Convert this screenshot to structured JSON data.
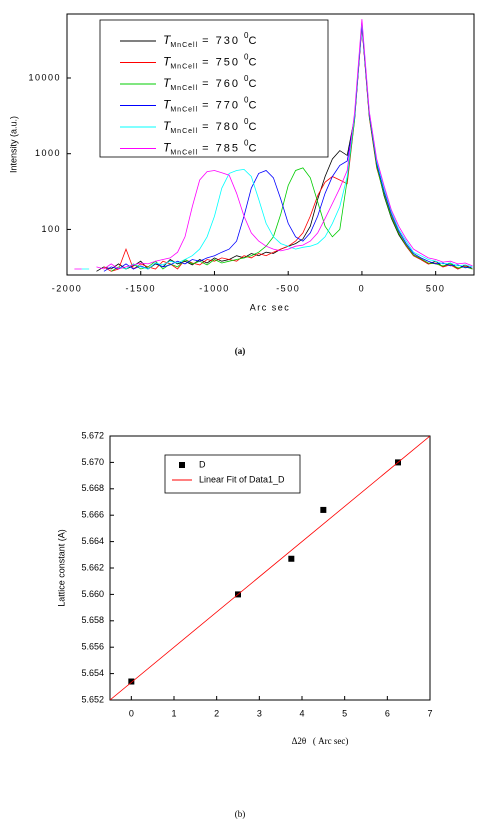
{
  "chart_data": [
    {
      "type": "line",
      "log_y": true,
      "caption": "(a)",
      "x_label": "Arc sec",
      "y_label": "Intensity (a.u.)",
      "xlim": [
        -2000,
        760
      ],
      "ylim": [
        25,
        70000
      ],
      "xticks": [
        -2000,
        -1500,
        -1000,
        -500,
        0,
        500
      ],
      "yticks": [
        100,
        1000,
        10000
      ],
      "x": [
        -2000,
        -1950,
        -1900,
        -1850,
        -1800,
        -1750,
        -1700,
        -1650,
        -1600,
        -1550,
        -1500,
        -1450,
        -1400,
        -1350,
        -1300,
        -1250,
        -1200,
        -1150,
        -1100,
        -1050,
        -1000,
        -950,
        -900,
        -850,
        -800,
        -750,
        -700,
        -650,
        -600,
        -550,
        -500,
        -450,
        -400,
        -350,
        -300,
        -250,
        -200,
        -150,
        -100,
        -50,
        0,
        50,
        100,
        150,
        200,
        250,
        300,
        350,
        400,
        450,
        500,
        550,
        600,
        650,
        700,
        750
      ],
      "series": [
        {
          "name": {
            "symbol": "T",
            "subscript": "MnCell",
            "text": "= 730",
            "superscript": "0",
            "unit": "C"
          },
          "color": "#000000",
          "values": [
            null,
            null,
            30,
            null,
            28,
            32,
            30,
            35,
            30,
            33,
            38,
            30,
            35,
            32,
            40,
            35,
            38,
            34,
            40,
            36,
            42,
            38,
            40,
            45,
            42,
            48,
            45,
            50,
            48,
            55,
            60,
            65,
            75,
            110,
            250,
            500,
            850,
            1100,
            950,
            3000,
            50000,
            3200,
            700,
            280,
            140,
            85,
            60,
            45,
            40,
            35,
            38,
            32,
            36,
            30,
            34,
            30
          ]
        },
        {
          "name": {
            "symbol": "T",
            "subscript": "MnCell",
            "text": "= 750",
            "superscript": "0",
            "unit": "C"
          },
          "color": "#ff0000",
          "values": [
            null,
            null,
            null,
            30,
            null,
            32,
            28,
            30,
            55,
            30,
            35,
            32,
            30,
            38,
            35,
            30,
            40,
            36,
            34,
            40,
            38,
            42,
            40,
            38,
            45,
            42,
            48,
            45,
            50,
            55,
            60,
            70,
            90,
            150,
            280,
            420,
            500,
            450,
            400,
            2800,
            48000,
            3000,
            650,
            300,
            150,
            90,
            60,
            45,
            40,
            35,
            36,
            32,
            34,
            30,
            33,
            30
          ]
        },
        {
          "name": {
            "symbol": "T",
            "subscript": "MnCell",
            "text": "= 760",
            "superscript": "0",
            "unit": "C"
          },
          "color": "#00cc00",
          "values": [
            null,
            null,
            null,
            null,
            30,
            null,
            28,
            32,
            30,
            35,
            30,
            32,
            38,
            30,
            35,
            32,
            40,
            35,
            38,
            34,
            40,
            36,
            38,
            40,
            42,
            45,
            50,
            60,
            80,
            160,
            380,
            600,
            650,
            480,
            230,
            110,
            80,
            100,
            450,
            2800,
            52000,
            3100,
            680,
            290,
            145,
            88,
            62,
            46,
            41,
            36,
            35,
            33,
            35,
            31,
            32,
            30
          ]
        },
        {
          "name": {
            "symbol": "T",
            "subscript": "MnCell",
            "text": "= 770",
            "superscript": "0",
            "unit": "C"
          },
          "color": "#0000ff",
          "values": [
            null,
            null,
            null,
            30,
            null,
            28,
            32,
            30,
            35,
            30,
            33,
            30,
            36,
            32,
            34,
            38,
            35,
            40,
            38,
            42,
            45,
            50,
            55,
            70,
            150,
            350,
            550,
            600,
            480,
            250,
            120,
            80,
            70,
            90,
            150,
            300,
            500,
            700,
            800,
            3000,
            50000,
            3300,
            750,
            320,
            160,
            95,
            65,
            48,
            42,
            38,
            35,
            36,
            33,
            34,
            31,
            32
          ]
        },
        {
          "name": {
            "symbol": "T",
            "subscript": "MnCell",
            "text": "= 780",
            "superscript": "0",
            "unit": "C"
          },
          "color": "#00ffff",
          "values": [
            null,
            null,
            30,
            30,
            null,
            30,
            null,
            32,
            30,
            35,
            32,
            30,
            36,
            34,
            38,
            36,
            40,
            45,
            55,
            80,
            150,
            350,
            550,
            600,
            620,
            500,
            250,
            120,
            80,
            65,
            60,
            55,
            58,
            60,
            65,
            80,
            120,
            200,
            500,
            3200,
            55000,
            3500,
            800,
            350,
            170,
            100,
            70,
            50,
            45,
            40,
            38,
            35,
            36,
            33,
            34,
            32
          ]
        },
        {
          "name": {
            "symbol": "T",
            "subscript": "MnCell",
            "text": "= 785",
            "superscript": "0",
            "unit": "C"
          },
          "color": "#ff00ff",
          "values": [
            null,
            30,
            30,
            null,
            32,
            30,
            35,
            30,
            32,
            34,
            36,
            35,
            38,
            40,
            42,
            50,
            80,
            200,
            450,
            580,
            600,
            560,
            520,
            300,
            150,
            90,
            70,
            60,
            55,
            52,
            55,
            60,
            62,
            70,
            90,
            140,
            220,
            350,
            600,
            3500,
            60000,
            3600,
            850,
            380,
            180,
            110,
            75,
            55,
            48,
            42,
            40,
            37,
            38,
            35,
            36,
            33
          ]
        }
      ]
    },
    {
      "type": "scatter",
      "caption": "(b)",
      "x_label": "Δ2θ   ( Arc sec)",
      "y_label": "Lattice constant (A)",
      "xlim": [
        -0.5,
        7
      ],
      "ylim": [
        5.652,
        5.672
      ],
      "xticks": [
        0,
        1,
        2,
        3,
        4,
        5,
        6,
        7
      ],
      "yticks": [
        5.652,
        5.654,
        5.656,
        5.658,
        {
          "value": 5.66,
          "label": "5.660"
        },
        5.662,
        5.664,
        5.666,
        5.668,
        {
          "value": 5.67,
          "label": "5.670"
        },
        5.672
      ],
      "series": [
        {
          "name": "D",
          "type": "scatter",
          "color": "#000000",
          "x": [
            0,
            2.5,
            3.75,
            4.5,
            6.25
          ],
          "values": [
            5.6534,
            5.66,
            5.6627,
            5.6664,
            5.67
          ]
        },
        {
          "name": "Linear Fit of Data1_D",
          "type": "line",
          "color": "#ff0000",
          "x": [
            -0.5,
            7
          ],
          "values": [
            5.652,
            5.672
          ]
        }
      ]
    }
  ]
}
